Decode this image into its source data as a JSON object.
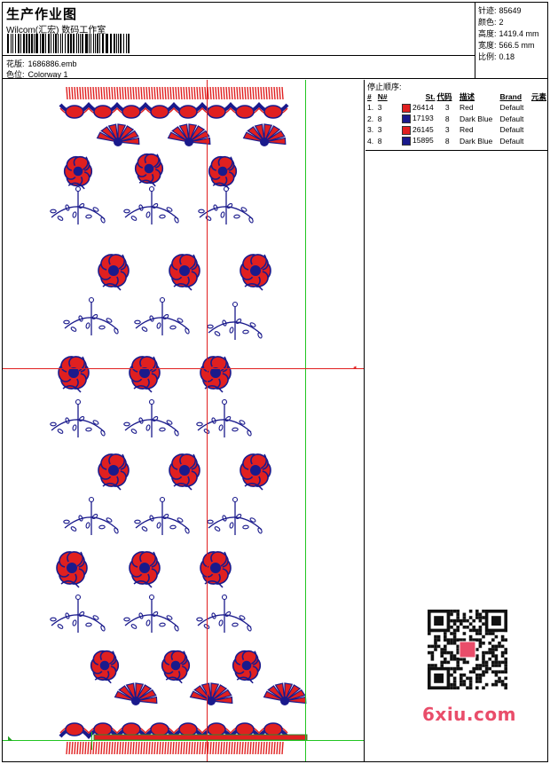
{
  "header": {
    "title": "生产作业图",
    "company": "Wilcom(汇宏) 数码工作室",
    "design_label": "花版:",
    "design_value": "1686886.emb",
    "colorway_label": "色位:",
    "colorway_value": "Colorway 1"
  },
  "stats": [
    {
      "label": "针迹:",
      "value": "85649"
    },
    {
      "label": "颜色:",
      "value": "2"
    },
    {
      "label": "高度:",
      "value": "1419.4 mm"
    },
    {
      "label": "宽度:",
      "value": "566.5 mm"
    },
    {
      "label": "比例:",
      "value": "0.18"
    }
  ],
  "stop_sequence": {
    "title": "停止顺序:",
    "columns": [
      "#",
      "N#",
      "St.",
      "代码",
      "描述",
      "Brand",
      "元素"
    ],
    "rows": [
      {
        "index": "1.",
        "needle": "3",
        "color": "#e02020",
        "code": "26414",
        "stitches": "3",
        "description": "Red",
        "brand": "Default"
      },
      {
        "index": "2.",
        "needle": "8",
        "color": "#1a1a8c",
        "code": "17193",
        "stitches": "8",
        "description": "Dark Blue",
        "brand": "Default"
      },
      {
        "index": "3.",
        "needle": "3",
        "color": "#e02020",
        "code": "26145",
        "stitches": "3",
        "description": "Red",
        "brand": "Default"
      },
      {
        "index": "4.",
        "needle": "8",
        "color": "#1a1a8c",
        "code": "15895",
        "stitches": "8",
        "description": "Dark Blue",
        "brand": "Default"
      }
    ]
  },
  "watermark": "6xiu.com",
  "colors": {
    "thread_red": "#e02020",
    "thread_blue": "#1a1a8c",
    "guide_green": "#21c521",
    "guide_red": "#e02020"
  }
}
